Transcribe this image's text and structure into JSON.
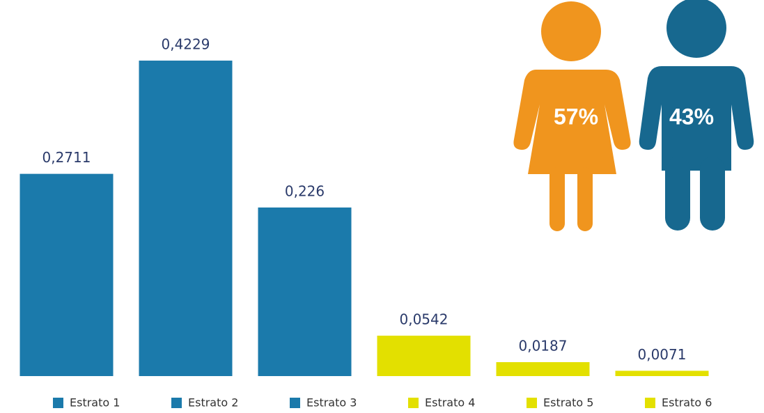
{
  "chart_data": {
    "type": "bar",
    "categories": [
      "Estrato 1",
      "Estrato 2",
      "Estrato 3",
      "Estrato 4",
      "Estrato 5",
      "Estrato 6"
    ],
    "values": [
      0.2711,
      0.4229,
      0.226,
      0.0542,
      0.0187,
      0.0071
    ],
    "value_labels": [
      "0,2711",
      "0,4229",
      "0,226",
      "0,0542",
      "0,0187",
      "0,0071"
    ],
    "colors": [
      "#1b7aab",
      "#1b7aab",
      "#1b7aab",
      "#e3e000",
      "#e3e000",
      "#e3e000"
    ],
    "ylim": [
      0,
      0.45
    ],
    "legend": "bottom",
    "infographic": {
      "values": [
        57,
        43
      ],
      "value_labels": [
        "57%",
        "43%"
      ],
      "colors": [
        "#f0951e",
        "#17688f"
      ]
    }
  }
}
